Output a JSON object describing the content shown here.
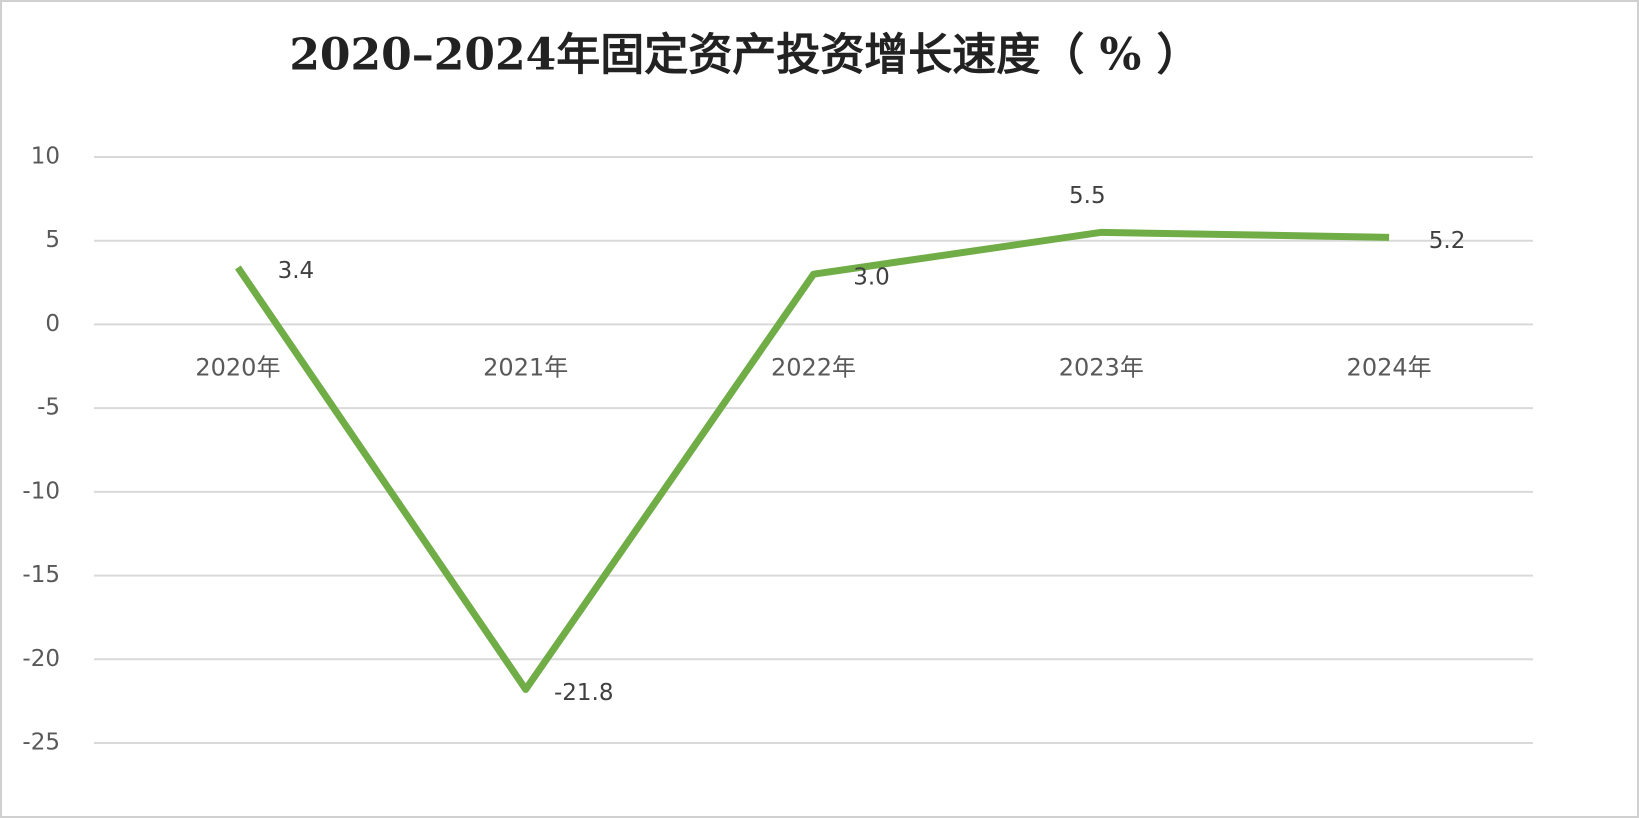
{
  "chart_data": {
    "type": "line",
    "title": "2020–2024年固定资产投资增长速度（ % ）",
    "categories": [
      "2020年",
      "2021年",
      "2022年",
      "2023年",
      "2024年"
    ],
    "series": [
      {
        "color": "#70ad47",
        "values": [
          3.4,
          -21.8,
          3.0,
          5.5,
          5.2
        ],
        "value_labels": [
          "3.4",
          "-21.8",
          "3.0",
          "5.5",
          "5.2"
        ]
      }
    ],
    "ylim": [
      -25,
      10
    ],
    "yticks": [
      10,
      5,
      0,
      -5,
      -10,
      -15,
      -20,
      -25
    ],
    "grid": true
  }
}
